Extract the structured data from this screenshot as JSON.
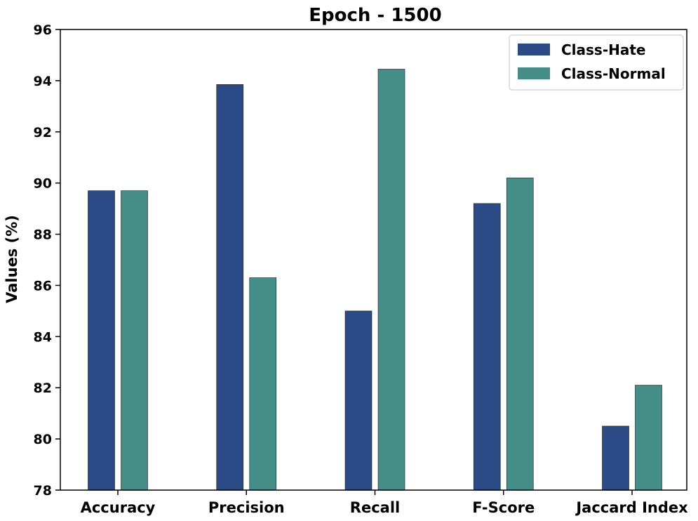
{
  "chart_data": {
    "type": "bar",
    "title": "Epoch - 1500",
    "xlabel": "",
    "ylabel": "Values (%)",
    "ylim": [
      78,
      96
    ],
    "yticks": [
      78,
      80,
      82,
      84,
      86,
      88,
      90,
      92,
      94,
      96
    ],
    "categories": [
      "Accuracy",
      "Precision",
      "Recall",
      "F-Score",
      "Jaccard Index"
    ],
    "series": [
      {
        "name": "Class-Hate",
        "color": "#2c4a86",
        "values": [
          89.7,
          93.85,
          85.0,
          89.2,
          80.5
        ]
      },
      {
        "name": "Class-Normal",
        "color": "#458d89",
        "values": [
          89.7,
          86.3,
          94.45,
          90.2,
          82.1
        ]
      }
    ],
    "legend_position": "top-right",
    "grid": false
  }
}
